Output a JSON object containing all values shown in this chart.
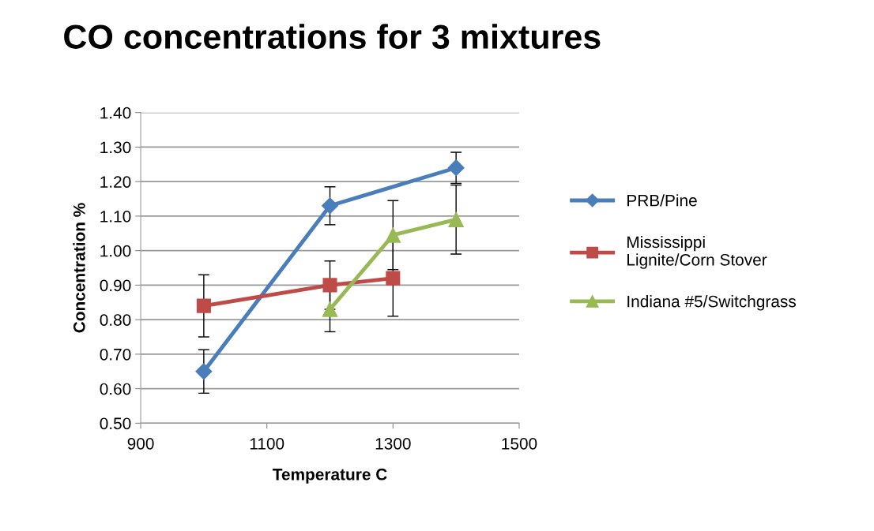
{
  "chart_data": {
    "type": "line",
    "title": "CO concentrations for 3 mixtures",
    "xlabel": "Temperature C",
    "ylabel": "Concentration %",
    "xlim": [
      900,
      1500
    ],
    "xticks": [
      900,
      1100,
      1300,
      1500
    ],
    "ylim": [
      0.5,
      1.4
    ],
    "yticks": [
      {
        "value": 0.5,
        "label": "0.50"
      },
      {
        "value": 0.6,
        "label": "0.60"
      },
      {
        "value": 0.7,
        "label": "0.70"
      },
      {
        "value": 0.8,
        "label": "0.80"
      },
      {
        "value": 0.9,
        "label": "0.90"
      },
      {
        "value": 1.0,
        "label": "1.00"
      },
      {
        "value": 1.1,
        "label": "1.10"
      },
      {
        "value": 1.2,
        "label": "1.20"
      },
      {
        "value": 1.3,
        "label": "1.30"
      },
      {
        "value": 1.4,
        "label": "1.40"
      }
    ],
    "grid": "y",
    "legend": "right",
    "line_style": "solid",
    "series": [
      {
        "name": "PRB/Pine",
        "color": "#4a7ebb",
        "marker": "diamond",
        "x": [
          1000,
          1200,
          1400
        ],
        "values": [
          0.65,
          1.13,
          1.24
        ],
        "errors": [
          0.063,
          0.055,
          0.045
        ]
      },
      {
        "name": "Mississippi Lignite/Corn Stover",
        "color": "#be4b48",
        "marker": "square",
        "x": [
          1000,
          1200,
          1300
        ],
        "values": [
          0.84,
          0.9,
          0.92
        ],
        "errors": [
          0.09,
          0.07,
          0.11
        ]
      },
      {
        "name": "Indiana #5/Switchgrass",
        "color": "#98b954",
        "marker": "triangle",
        "x": [
          1200,
          1300,
          1400
        ],
        "values": [
          0.83,
          1.045,
          1.09
        ],
        "errors": [
          0.065,
          0.1,
          0.1
        ]
      }
    ]
  }
}
